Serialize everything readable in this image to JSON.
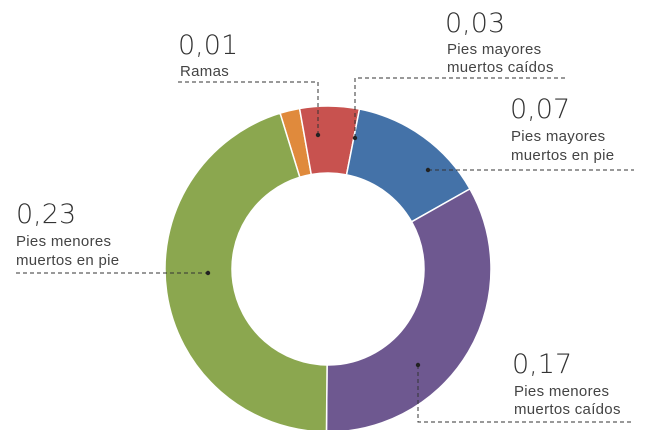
{
  "chart_data": {
    "type": "pie",
    "donut": true,
    "start_category": "Ramas",
    "categories": [
      {
        "key": "ramas",
        "value_label": "0,01",
        "label_lines": [
          "Ramas"
        ],
        "value": 0.01,
        "color": "#E08A3C"
      },
      {
        "key": "mayores_caidos",
        "value_label": "0,03",
        "label_lines": [
          "Pies mayores",
          "muertos caídos"
        ],
        "value": 0.03,
        "color": "#C8524F"
      },
      {
        "key": "mayores_pie",
        "value_label": "0,07",
        "label_lines": [
          "Pies mayores",
          "muertos en pie"
        ],
        "value": 0.07,
        "color": "#4472A8"
      },
      {
        "key": "menores_caidos",
        "value_label": "0,17",
        "label_lines": [
          "Pies menores",
          "muertos caídos"
        ],
        "value": 0.17,
        "color": "#6E5890"
      },
      {
        "key": "menores_pie",
        "value_label": "0,23",
        "label_lines": [
          "Pies menores",
          "muertos en pie"
        ],
        "value": 0.23,
        "color": "#8BA74F"
      }
    ]
  }
}
